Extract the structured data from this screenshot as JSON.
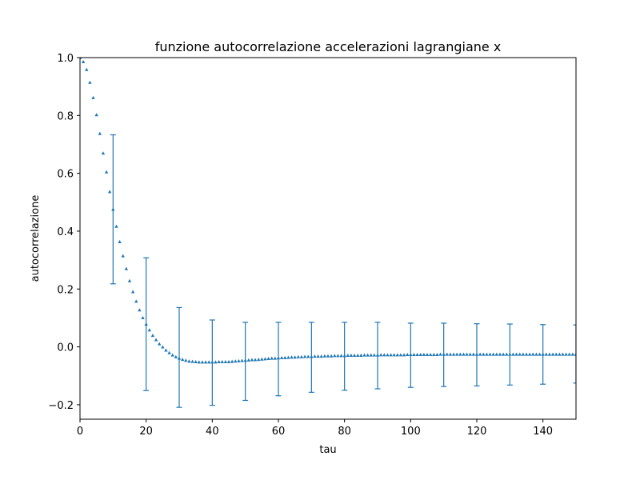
{
  "chart_data": {
    "type": "scatter",
    "title": "funzione autocorrelazione accelerazioni lagrangiane x",
    "xlabel": "tau",
    "ylabel": "autocorrelazione",
    "xlim": [
      0,
      150
    ],
    "ylim": [
      -0.25,
      1.0
    ],
    "xticks": [
      0,
      20,
      40,
      60,
      80,
      100,
      120,
      140
    ],
    "yticks": [
      -0.2,
      0.0,
      0.2,
      0.4,
      0.6,
      0.8,
      1.0
    ],
    "xtick_labels": [
      "0",
      "20",
      "40",
      "60",
      "80",
      "100",
      "120",
      "140"
    ],
    "ytick_labels": [
      "−0.2",
      "0.0",
      "0.2",
      "0.4",
      "0.6",
      "0.8",
      "1.0"
    ],
    "grid": false,
    "marker": "triangle",
    "color": "#1f77b4",
    "series": [
      {
        "x": [
          0,
          1,
          2,
          3,
          4,
          5,
          6,
          7,
          8,
          9,
          10,
          11,
          12,
          13,
          14,
          15,
          16,
          17,
          18,
          19,
          20,
          21,
          22,
          23,
          24,
          25,
          26,
          27,
          28,
          29,
          30,
          31,
          32,
          33,
          34,
          35,
          36,
          37,
          38,
          39,
          40,
          41,
          42,
          43,
          44,
          45,
          46,
          47,
          48,
          49,
          50,
          51,
          52,
          53,
          54,
          55,
          56,
          57,
          58,
          59,
          60,
          61,
          62,
          63,
          64,
          65,
          66,
          67,
          68,
          69,
          70,
          71,
          72,
          73,
          74,
          75,
          76,
          77,
          78,
          79,
          80,
          81,
          82,
          83,
          84,
          85,
          86,
          87,
          88,
          89,
          90,
          91,
          92,
          93,
          94,
          95,
          96,
          97,
          98,
          99,
          100,
          101,
          102,
          103,
          104,
          105,
          106,
          107,
          108,
          109,
          110,
          111,
          112,
          113,
          114,
          115,
          116,
          117,
          118,
          119,
          120,
          121,
          122,
          123,
          124,
          125,
          126,
          127,
          128,
          129,
          130,
          131,
          132,
          133,
          134,
          135,
          136,
          137,
          138,
          139,
          140,
          141,
          142,
          143,
          144,
          145,
          146,
          147,
          148,
          149,
          150
        ],
        "y": [
          1.0,
          0.985,
          0.958,
          0.914,
          0.861,
          0.802,
          0.737,
          0.669,
          0.604,
          0.536,
          0.475,
          0.416,
          0.363,
          0.314,
          0.27,
          0.228,
          0.19,
          0.157,
          0.127,
          0.1,
          0.078,
          0.058,
          0.039,
          0.024,
          0.01,
          -0.001,
          -0.012,
          -0.021,
          -0.029,
          -0.035,
          -0.04,
          -0.044,
          -0.047,
          -0.05,
          -0.051,
          -0.052,
          -0.053,
          -0.053,
          -0.053,
          -0.053,
          -0.053,
          -0.053,
          -0.052,
          -0.052,
          -0.052,
          -0.052,
          -0.051,
          -0.05,
          -0.049,
          -0.048,
          -0.047,
          -0.046,
          -0.045,
          -0.045,
          -0.044,
          -0.043,
          -0.042,
          -0.041,
          -0.04,
          -0.04,
          -0.039,
          -0.038,
          -0.038,
          -0.037,
          -0.036,
          -0.036,
          -0.035,
          -0.035,
          -0.034,
          -0.034,
          -0.034,
          -0.033,
          -0.033,
          -0.033,
          -0.032,
          -0.032,
          -0.032,
          -0.031,
          -0.031,
          -0.031,
          -0.031,
          -0.03,
          -0.03,
          -0.03,
          -0.03,
          -0.03,
          -0.029,
          -0.029,
          -0.029,
          -0.029,
          -0.029,
          -0.028,
          -0.028,
          -0.028,
          -0.028,
          -0.028,
          -0.028,
          -0.028,
          -0.028,
          -0.027,
          -0.027,
          -0.027,
          -0.027,
          -0.027,
          -0.027,
          -0.027,
          -0.027,
          -0.027,
          -0.027,
          -0.026,
          -0.026,
          -0.026,
          -0.026,
          -0.026,
          -0.026,
          -0.026,
          -0.026,
          -0.026,
          -0.026,
          -0.026,
          -0.026,
          -0.026,
          -0.026,
          -0.026,
          -0.026,
          -0.026,
          -0.026,
          -0.026,
          -0.026,
          -0.026,
          -0.026,
          -0.026,
          -0.026,
          -0.026,
          -0.026,
          -0.026,
          -0.026,
          -0.026,
          -0.026,
          -0.026,
          -0.026,
          -0.026,
          -0.026,
          -0.026,
          -0.026,
          -0.026,
          -0.026,
          -0.026,
          -0.026,
          -0.026,
          -0.026
        ]
      }
    ],
    "error_bars": [
      {
        "x": 10,
        "low": 0.218,
        "high": 0.733
      },
      {
        "x": 20,
        "low": -0.151,
        "high": 0.308
      },
      {
        "x": 30,
        "low": -0.209,
        "high": 0.136
      },
      {
        "x": 40,
        "low": -0.202,
        "high": 0.093
      },
      {
        "x": 50,
        "low": -0.185,
        "high": 0.085
      },
      {
        "x": 60,
        "low": -0.169,
        "high": 0.085
      },
      {
        "x": 70,
        "low": -0.157,
        "high": 0.085
      },
      {
        "x": 80,
        "low": -0.15,
        "high": 0.085
      },
      {
        "x": 90,
        "low": -0.145,
        "high": 0.085
      },
      {
        "x": 100,
        "low": -0.14,
        "high": 0.082
      },
      {
        "x": 110,
        "low": -0.137,
        "high": 0.082
      },
      {
        "x": 120,
        "low": -0.135,
        "high": 0.08
      },
      {
        "x": 130,
        "low": -0.132,
        "high": 0.079
      },
      {
        "x": 140,
        "low": -0.129,
        "high": 0.077
      },
      {
        "x": 150,
        "low": -0.125,
        "high": 0.076
      }
    ]
  }
}
